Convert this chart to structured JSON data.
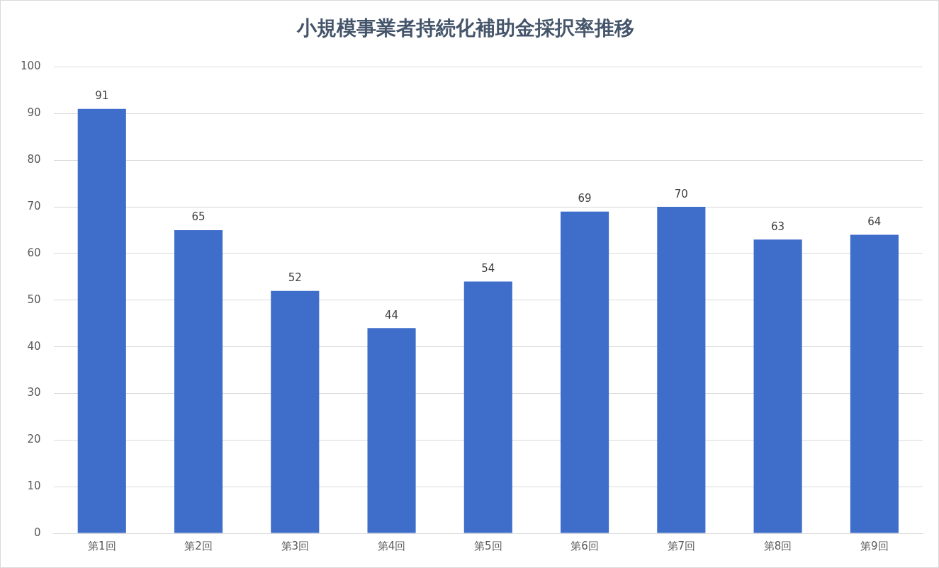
{
  "chart_data": {
    "type": "bar",
    "title": "小規模事業者持続化補助金採択率推移",
    "categories": [
      "第1回",
      "第2回",
      "第3回",
      "第4回",
      "第5回",
      "第6回",
      "第7回",
      "第8回",
      "第9回"
    ],
    "values": [
      91,
      65,
      52,
      44,
      54,
      69,
      70,
      63,
      64
    ],
    "color": "#3f6dca",
    "ylim": [
      0,
      100
    ],
    "yticks": [
      0,
      10,
      20,
      30,
      40,
      50,
      60,
      70,
      80,
      90,
      100
    ],
    "grid": "y",
    "data_labels": true
  }
}
